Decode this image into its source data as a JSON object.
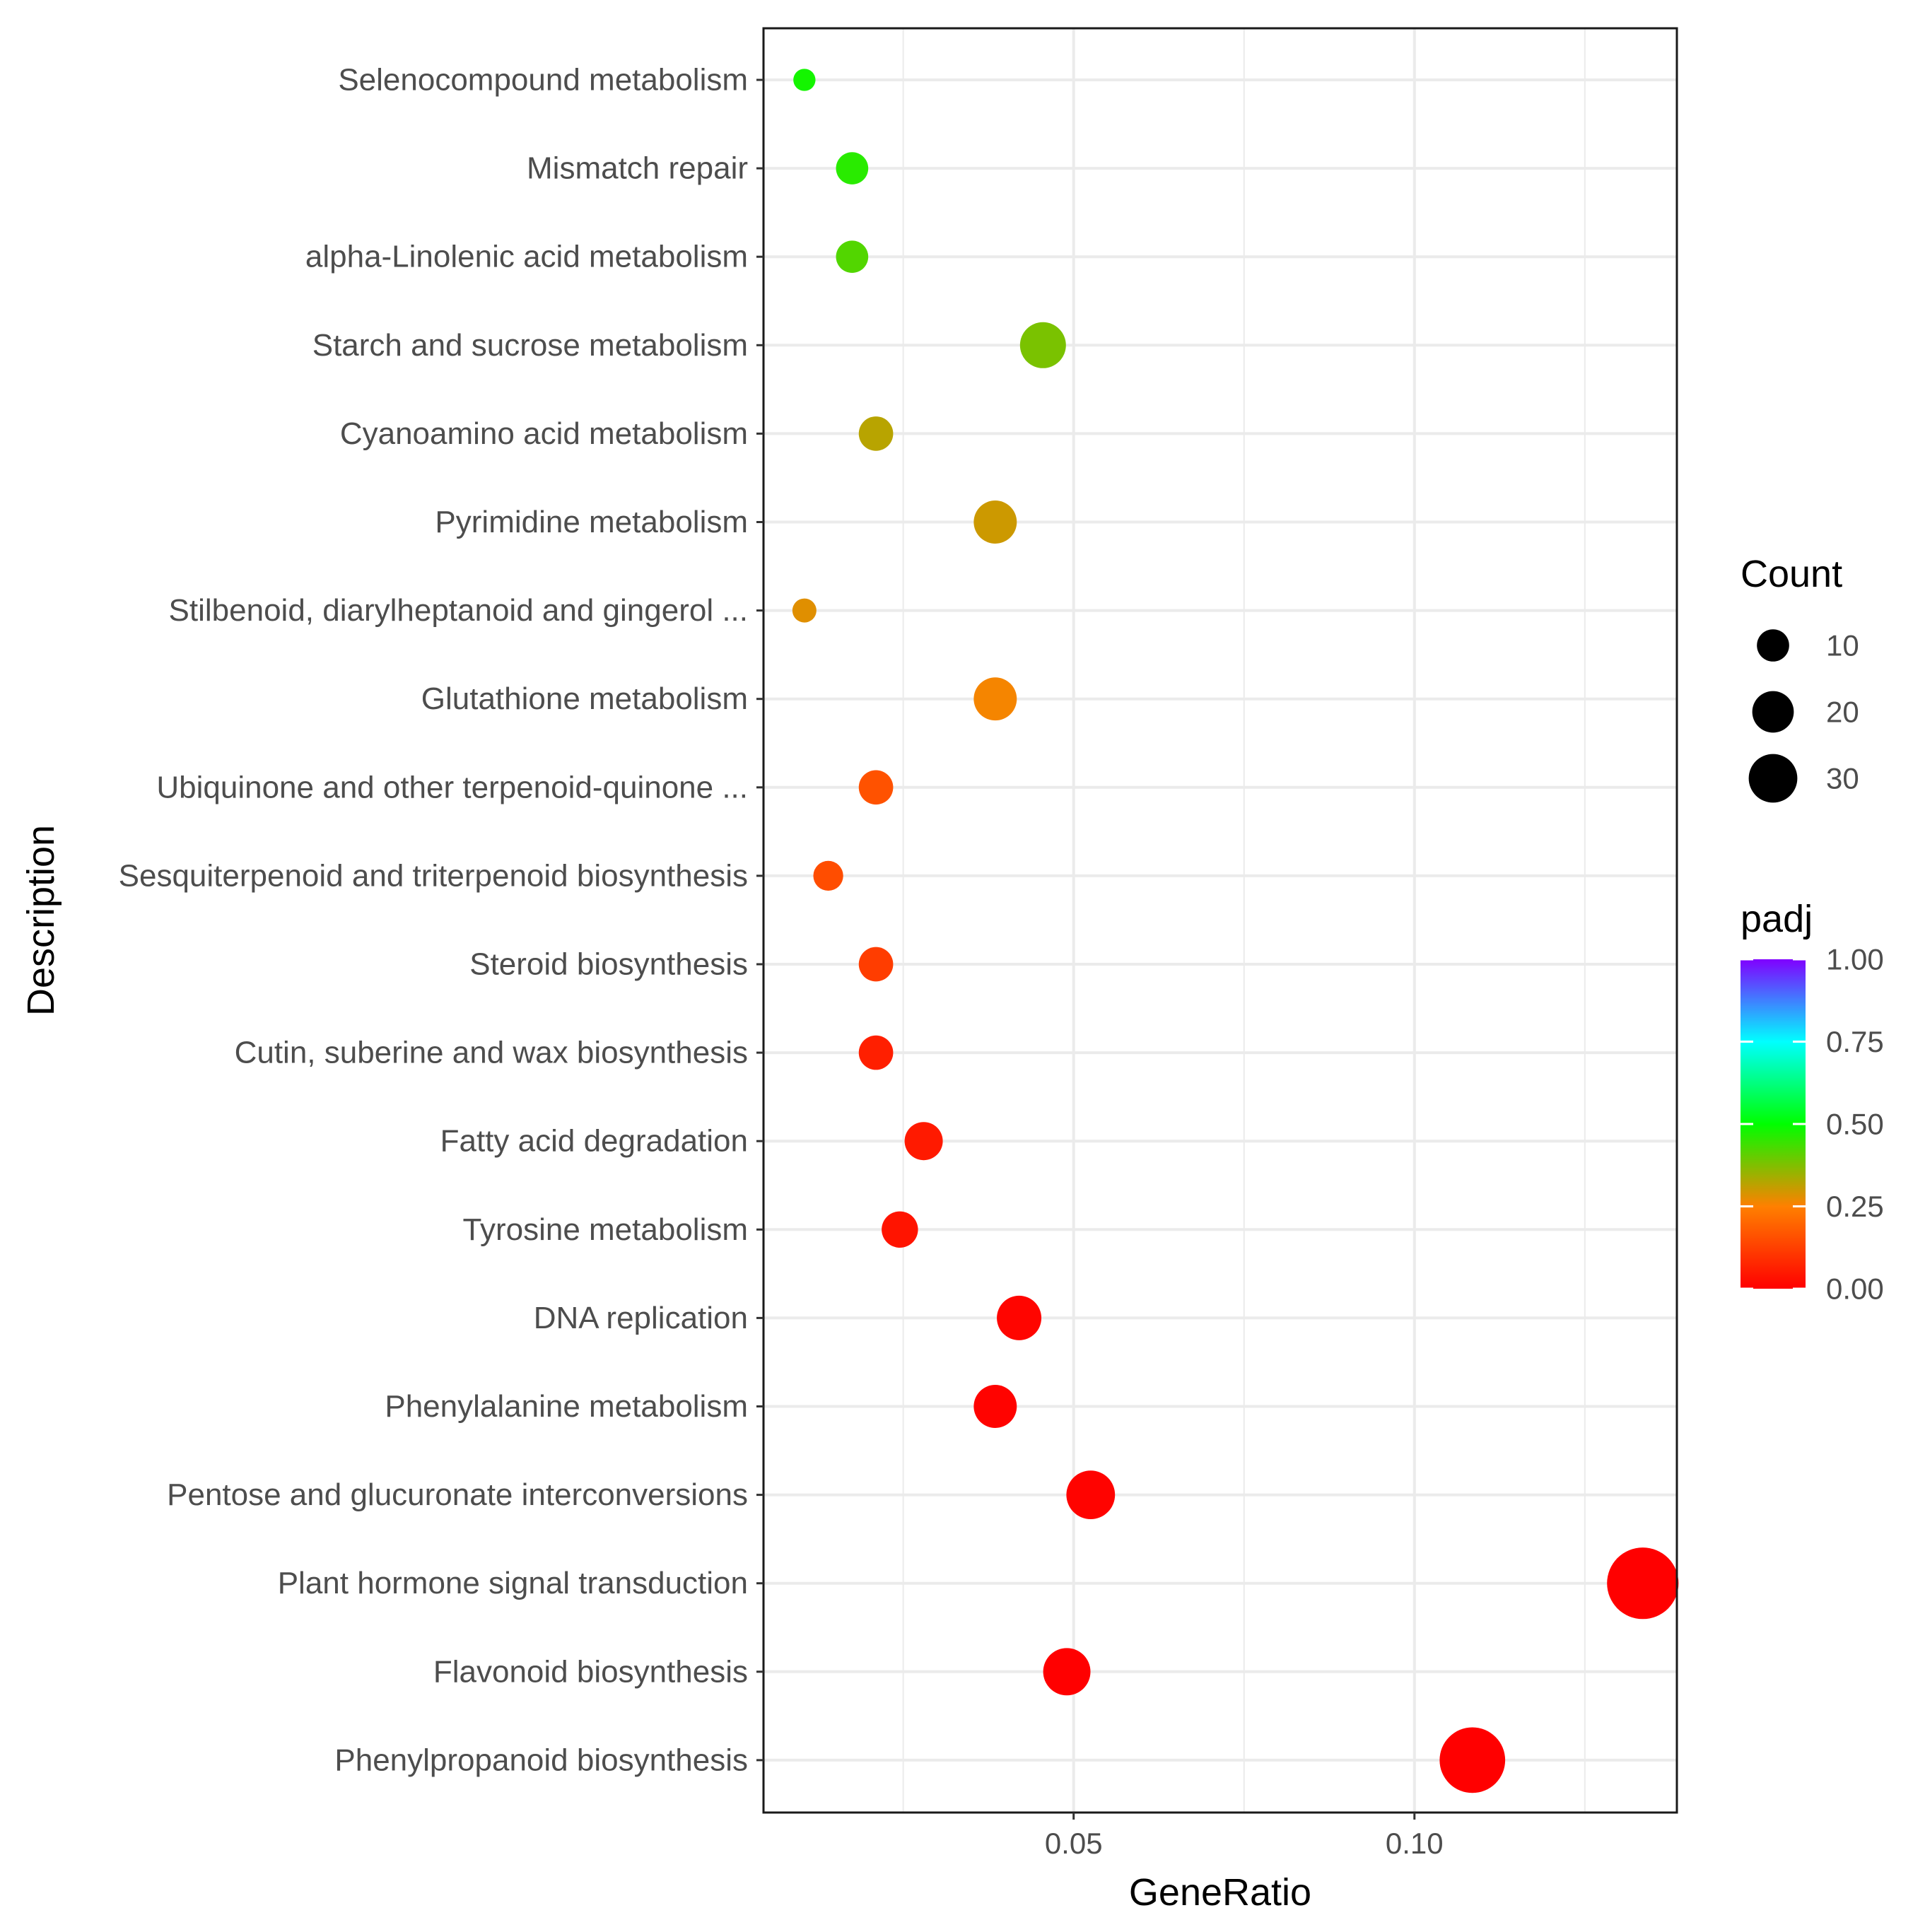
{
  "chart_data": {
    "type": "scatter",
    "title": "",
    "xlabel": "GeneRatio",
    "ylabel": "Description",
    "xlim": [
      0.0045,
      0.1385
    ],
    "x_ticks": [
      0.05,
      0.1
    ],
    "x_tick_labels": [
      "0.05",
      "0.10"
    ],
    "grid": true,
    "points": [
      {
        "description": "Selenocompound metabolism",
        "gene_ratio": 0.0105,
        "count": 3,
        "padj": 0.48
      },
      {
        "description": "Mismatch repair",
        "gene_ratio": 0.0175,
        "count": 10,
        "padj": 0.46
      },
      {
        "description": "alpha-Linolenic acid metabolism",
        "gene_ratio": 0.0175,
        "count": 10,
        "padj": 0.42
      },
      {
        "description": "Starch and sucrose metabolism",
        "gene_ratio": 0.0455,
        "count": 26,
        "padj": 0.38
      },
      {
        "description": "Cyanoamino acid metabolism",
        "gene_ratio": 0.021,
        "count": 12,
        "padj": 0.32
      },
      {
        "description": "Pyrimidine metabolism",
        "gene_ratio": 0.0385,
        "count": 22,
        "padj": 0.3
      },
      {
        "description": "Stilbenoid, diarylheptanoid and gingerol ...",
        "gene_ratio": 0.0105,
        "count": 4,
        "padj": 0.28
      },
      {
        "description": "Glutathione metabolism",
        "gene_ratio": 0.0385,
        "count": 22,
        "padj": 0.26
      },
      {
        "description": "Ubiquinone and other terpenoid-quinone ...",
        "gene_ratio": 0.021,
        "count": 12,
        "padj": 0.16
      },
      {
        "description": "Sesquiterpenoid and triterpenoid biosynthesis",
        "gene_ratio": 0.014,
        "count": 8,
        "padj": 0.15
      },
      {
        "description": "Steroid biosynthesis",
        "gene_ratio": 0.021,
        "count": 12,
        "padj": 0.12
      },
      {
        "description": "Cutin, suberine and wax biosynthesis",
        "gene_ratio": 0.021,
        "count": 12,
        "padj": 0.06
      },
      {
        "description": "Fatty acid degradation",
        "gene_ratio": 0.028,
        "count": 16,
        "padj": 0.05
      },
      {
        "description": "Tyrosine metabolism",
        "gene_ratio": 0.0245,
        "count": 14,
        "padj": 0.04
      },
      {
        "description": "DNA replication",
        "gene_ratio": 0.042,
        "count": 24,
        "padj": 0.01
      },
      {
        "description": "Phenylalanine metabolism",
        "gene_ratio": 0.0385,
        "count": 22,
        "padj": 0.005
      },
      {
        "description": "Pentose and glucuronate interconversions",
        "gene_ratio": 0.0525,
        "count": 30,
        "padj": 0.005
      },
      {
        "description": "Plant hormone signal transduction",
        "gene_ratio": 0.1335,
        "count": 76,
        "padj": 0.0
      },
      {
        "description": "Flavonoid biosynthesis",
        "gene_ratio": 0.049,
        "count": 28,
        "padj": 0.0
      },
      {
        "description": "Phenylpropanoid biosynthesis",
        "gene_ratio": 0.1085,
        "count": 62,
        "padj": 0.0
      }
    ],
    "legend": {
      "placement": "right",
      "size_title": "Count",
      "size_breaks": [
        10,
        20,
        30
      ],
      "size_labels": [
        "10",
        "20",
        "30"
      ],
      "color_title": "padj",
      "color_breaks": [
        1.0,
        0.75,
        0.5,
        0.25,
        0.0
      ],
      "color_labels": [
        "1.00",
        "0.75",
        "0.50",
        "0.25",
        "0.00"
      ],
      "colors": {
        "low": "#ff0000",
        "mid_low": "#ff8000",
        "mid": "#00ff00",
        "mid_high": "#00ffff",
        "high": "#8000ff"
      }
    }
  }
}
